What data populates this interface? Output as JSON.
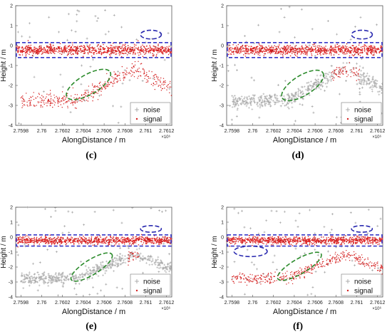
{
  "chart_data": [
    {
      "type": "scatter",
      "panel_label": "(c)",
      "xlabel": "AlongDistance / m",
      "ylabel": "Height / m",
      "x_multiplier": "×10⁶",
      "xlim": [
        2.75975,
        2.76125
      ],
      "ylim": [
        -4,
        2
      ],
      "x_ticks": [
        2.7598,
        2.76,
        2.7602,
        2.7604,
        2.7606,
        2.7608,
        2.761,
        2.7612
      ],
      "x_tick_labels": [
        "2.7598",
        "2.76",
        "2.7602",
        "2.7604",
        "2.7606",
        "2.7608",
        "2.761",
        "2.7612"
      ],
      "y_ticks": [
        -4,
        -3,
        -2,
        -1,
        0,
        1,
        2
      ],
      "y_tick_labels": [
        "-4",
        "-3",
        "-2",
        "-1",
        "0",
        "1",
        "2"
      ],
      "legend": {
        "placement": "bottom-right",
        "entries": [
          "noise",
          "signal"
        ]
      },
      "series": [
        {
          "name": "noise",
          "marker": "plus",
          "color": "#9a9a9a"
        },
        {
          "name": "signal",
          "marker": "dot",
          "color": "#d42020"
        }
      ],
      "signal_regions": [
        "surface_band",
        "terrain_full"
      ],
      "ellipses": [
        {
          "color": "#2a2ab0",
          "cx": 2.76105,
          "cy": 0.55,
          "rx": 0.0001,
          "ry": 0.22
        },
        {
          "color": "#2a8a2a",
          "cx": 2.76045,
          "cy": -1.95,
          "rx": 0.00024,
          "ry": 0.5,
          "rotation": -30
        }
      ],
      "surface_box": {
        "color": "#3838c8",
        "y_range": [
          -0.6,
          0.15
        ]
      }
    },
    {
      "type": "scatter",
      "panel_label": "(d)",
      "xlabel": "AlongDistance / m",
      "ylabel": "Height / m",
      "x_multiplier": "×10⁶",
      "xlim": [
        2.75975,
        2.76125
      ],
      "ylim": [
        -4,
        2
      ],
      "x_ticks": [
        2.7598,
        2.76,
        2.7602,
        2.7604,
        2.7606,
        2.7608,
        2.761,
        2.7612
      ],
      "x_tick_labels": [
        "2.7598",
        "2.76",
        "2.7602",
        "2.7604",
        "2.7606",
        "2.7608",
        "2.761",
        "2.7612"
      ],
      "y_ticks": [
        -4,
        -3,
        -2,
        -1,
        0,
        1,
        2
      ],
      "y_tick_labels": [
        "-4",
        "-3",
        "-2",
        "-1",
        "0",
        "1",
        "2"
      ],
      "legend": {
        "placement": "bottom-right",
        "entries": [
          "noise",
          "signal"
        ]
      },
      "series": [
        {
          "name": "noise",
          "marker": "plus",
          "color": "#9a9a9a"
        },
        {
          "name": "signal",
          "marker": "dot",
          "color": "#d42020"
        }
      ],
      "signal_regions": [
        "surface_band",
        "terrain_peak"
      ],
      "ellipses": [
        {
          "color": "#2a2ab0",
          "cx": 2.76105,
          "cy": 0.55,
          "rx": 0.0001,
          "ry": 0.22
        },
        {
          "color": "#2a8a2a",
          "cx": 2.76048,
          "cy": -2.0,
          "rx": 0.00023,
          "ry": 0.5,
          "rotation": -32
        }
      ],
      "surface_box": {
        "color": "#3838c8",
        "y_range": [
          -0.6,
          0.15
        ]
      }
    },
    {
      "type": "scatter",
      "panel_label": "(e)",
      "xlabel": "AlongDistance / m",
      "ylabel": "Height / m",
      "x_multiplier": "×10⁶",
      "xlim": [
        2.75975,
        2.76125
      ],
      "ylim": [
        -4,
        2
      ],
      "x_ticks": [
        2.7598,
        2.76,
        2.7602,
        2.7604,
        2.7606,
        2.7608,
        2.761,
        2.7612
      ],
      "x_tick_labels": [
        "2.7598",
        "2.76",
        "2.7602",
        "2.7604",
        "2.7606",
        "2.7608",
        "2.761",
        "2.7612"
      ],
      "y_ticks": [
        -4,
        -3,
        -2,
        -1,
        0,
        1,
        2
      ],
      "y_tick_labels": [
        "-4",
        "-3",
        "-2",
        "-1",
        "0",
        "1",
        "2"
      ],
      "legend": {
        "placement": "bottom-right",
        "entries": [
          "noise",
          "signal"
        ]
      },
      "series": [
        {
          "name": "noise",
          "marker": "plus",
          "color": "#9a9a9a"
        },
        {
          "name": "signal",
          "marker": "dot",
          "color": "#d42020"
        }
      ],
      "signal_regions": [
        "surface_band",
        "terrain_tip"
      ],
      "ellipses": [
        {
          "color": "#2a2ab0",
          "cx": 2.76105,
          "cy": 0.55,
          "rx": 0.0001,
          "ry": 0.22
        },
        {
          "color": "#2a8a2a",
          "cx": 2.76048,
          "cy": -2.0,
          "rx": 0.00023,
          "ry": 0.5,
          "rotation": -32
        }
      ],
      "surface_box": {
        "color": "#3838c8",
        "y_range": [
          -0.6,
          0.15
        ]
      }
    },
    {
      "type": "scatter",
      "panel_label": "(f)",
      "xlabel": "AlongDistance / m",
      "ylabel": "Height / m",
      "x_multiplier": "×10⁶",
      "xlim": [
        2.75975,
        2.76125
      ],
      "ylim": [
        -4,
        2
      ],
      "x_ticks": [
        2.7598,
        2.76,
        2.7602,
        2.7604,
        2.7606,
        2.7608,
        2.761,
        2.7612
      ],
      "x_tick_labels": [
        "2.7598",
        "2.76",
        "2.7602",
        "2.7604",
        "2.7606",
        "2.7608",
        "2.761",
        "2.7612"
      ],
      "y_ticks": [
        -4,
        -3,
        -2,
        -1,
        0,
        1,
        2
      ],
      "y_tick_labels": [
        "-4",
        "-3",
        "-2",
        "-1",
        "0",
        "1",
        "2"
      ],
      "legend": {
        "placement": "bottom-right",
        "entries": [
          "noise",
          "signal"
        ]
      },
      "series": [
        {
          "name": "noise",
          "marker": "plus",
          "color": "#9a9a9a"
        },
        {
          "name": "signal",
          "marker": "dot",
          "color": "#d42020"
        }
      ],
      "signal_regions": [
        "surface_band",
        "terrain_full"
      ],
      "ellipses": [
        {
          "color": "#2a2ab0",
          "cx": 2.76105,
          "cy": 0.55,
          "rx": 0.0001,
          "ry": 0.22
        },
        {
          "color": "#2a2ab0",
          "cx": 2.75998,
          "cy": -0.95,
          "rx": 0.00016,
          "ry": 0.35
        },
        {
          "color": "#2a8a2a",
          "cx": 2.76045,
          "cy": -1.95,
          "rx": 0.00024,
          "ry": 0.5,
          "rotation": -30
        }
      ],
      "surface_box": {
        "color": "#3838c8",
        "y_range": [
          -0.6,
          0.15
        ]
      }
    }
  ]
}
